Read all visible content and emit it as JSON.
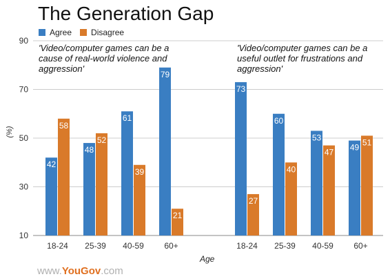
{
  "chart_data": {
    "type": "bar",
    "title": "The Generation Gap",
    "ylabel": "(%)",
    "xlabel": "Age",
    "ylim": [
      10,
      90
    ],
    "yticks": [
      10,
      30,
      50,
      70,
      90
    ],
    "grid": true,
    "legend_position": "top-left",
    "colors": {
      "agree": "#3a7ec2",
      "disagree": "#d97a2a"
    },
    "series_names": [
      "Agree",
      "Disagree"
    ],
    "groups": [
      {
        "annotation": "'Video/computer games can be a cause of real-world violence and aggression'",
        "categories": [
          "18-24",
          "25-39",
          "40-59",
          "60+"
        ],
        "series": [
          {
            "name": "Agree",
            "values": [
              42,
              48,
              61,
              79
            ]
          },
          {
            "name": "Disagree",
            "values": [
              58,
              52,
              39,
              21
            ]
          }
        ]
      },
      {
        "annotation": "'Video/computer games can be a useful outlet for frustrations and aggression'",
        "categories": [
          "18-24",
          "25-39",
          "40-59",
          "60+"
        ],
        "series": [
          {
            "name": "Agree",
            "values": [
              73,
              60,
              53,
              49
            ]
          },
          {
            "name": "Disagree",
            "values": [
              27,
              40,
              47,
              51
            ]
          }
        ]
      }
    ]
  },
  "logo": {
    "prefix": "www.",
    "brand": "YouGov",
    "suffix": ".com"
  }
}
